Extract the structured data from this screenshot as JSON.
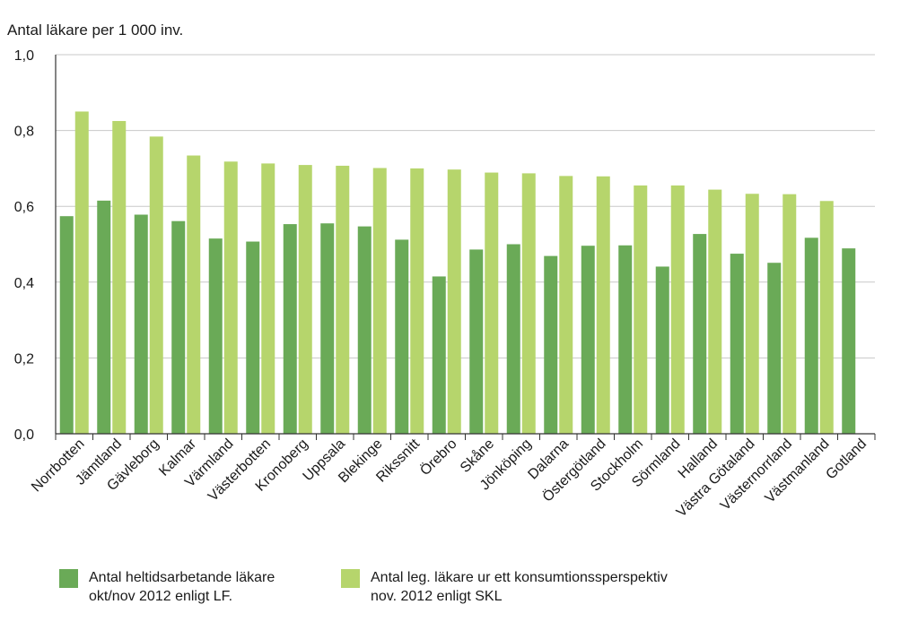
{
  "chart_data": {
    "type": "bar",
    "ylabel": "Antal läkare per 1 000 inv.",
    "ylim": [
      0,
      1.0
    ],
    "yticks": [
      "0,0",
      "0,2",
      "0,4",
      "0,6",
      "0,8",
      "1,0"
    ],
    "ytick_values": [
      0,
      0.2,
      0.4,
      0.6,
      0.8,
      1.0
    ],
    "grid": true,
    "categories": [
      "Norrbotten",
      "Jämtland",
      "Gävleborg",
      "Kalmar",
      "Värmland",
      "Västerbotten",
      "Kronoberg",
      "Uppsala",
      "Blekinge",
      "Rikssnitt",
      "Örebro",
      "Skåne",
      "Jönköping",
      "Dalarna",
      "Östergötland",
      "Stockholm",
      "Sörmland",
      "Halland",
      "Västra Götaland",
      "Västernorrland",
      "Västmanland",
      "Gotland"
    ],
    "series": [
      {
        "name": "Antal heltidsarbetande läkare okt/nov 2012 enligt LF.",
        "color": "#6aaa57",
        "values": [
          0.574,
          0.615,
          0.578,
          0.561,
          0.515,
          0.507,
          0.553,
          0.555,
          0.547,
          0.512,
          0.415,
          0.486,
          0.5,
          0.469,
          0.496,
          0.497,
          0.441,
          0.527,
          0.475,
          0.451,
          0.517,
          0.489
        ]
      },
      {
        "name": "Antal leg. läkare ur ett konsumtionssperspektiv nov. 2012 enligt SKL",
        "color": "#b6d56c",
        "values": [
          0.85,
          0.825,
          0.784,
          0.734,
          0.718,
          0.713,
          0.709,
          0.707,
          0.701,
          0.7,
          0.697,
          0.689,
          0.687,
          0.68,
          0.679,
          0.655,
          0.655,
          0.644,
          0.633,
          0.632,
          0.614,
          null
        ]
      }
    ]
  },
  "legend": {
    "items": [
      {
        "line1": "Antal heltidsarbetande läkare",
        "line2": "okt/nov 2012 enligt LF.",
        "color": "#6aaa57"
      },
      {
        "line1": "Antal leg. läkare ur ett konsumtionssperspektiv",
        "line2": "nov. 2012 enligt SKL",
        "color": "#b6d56c"
      }
    ]
  }
}
